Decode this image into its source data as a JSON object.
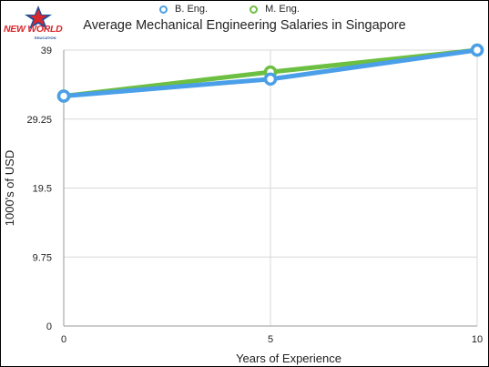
{
  "logo": {
    "text": "NEW WORLD",
    "subtext": "EDUCATION"
  },
  "chart_data": {
    "type": "line",
    "title": "Average Mechanical Engineering Salaries in Singapore",
    "xlabel": "Years of Experience",
    "ylabel": "1000's of USD",
    "x": [
      0,
      5,
      10
    ],
    "xticks": [
      "0",
      "5",
      "10"
    ],
    "yticks": [
      "0",
      "9.75",
      "19.5",
      "29.25",
      "39"
    ],
    "ytick_values": [
      0,
      9.75,
      19.5,
      29.25,
      39
    ],
    "xlim": [
      0,
      10
    ],
    "ylim": [
      0,
      39
    ],
    "grid": "horizontal",
    "legend_position": "top",
    "series": [
      {
        "name": "B. Eng.",
        "values": [
          32.5,
          34.9,
          39.0
        ],
        "color": "#4a9fe8"
      },
      {
        "name": "M. Eng.",
        "values": [
          32.5,
          35.9,
          39.0
        ],
        "color": "#6cbf40"
      }
    ]
  }
}
